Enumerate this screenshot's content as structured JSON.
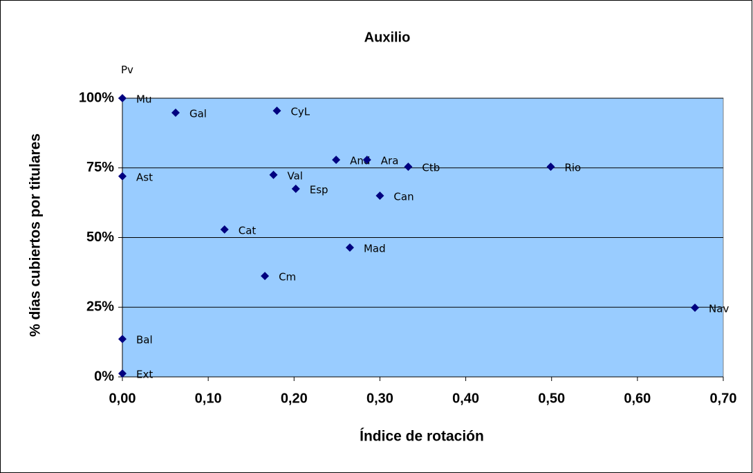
{
  "chart_data": {
    "type": "scatter",
    "title": "Auxilio",
    "xlabel": "Índice de rotación",
    "ylabel": "% días cubiertos por titulares",
    "series": [
      {
        "color": "#000080",
        "labels": [
          "Pv",
          "Mu",
          "Gal",
          "CyL",
          "And",
          "Ara",
          "Ctb",
          "Rio",
          "Ast",
          "Val",
          "Esp",
          "Can",
          "Cat",
          "Mad",
          "Cm",
          "Nav",
          "Bal",
          "Ext"
        ],
        "x": [
          0,
          0,
          0.062,
          0.18,
          0.249,
          0.285,
          0.333,
          0.499,
          0,
          0.176,
          0.202,
          0.3,
          0.119,
          0.265,
          0.166,
          0.667,
          0,
          0
        ],
        "values": [
          110,
          100,
          94.8,
          95.5,
          77.9,
          77.9,
          75.4,
          75.4,
          72,
          72.5,
          67.5,
          65,
          52.9,
          46.4,
          36.2,
          24.8,
          13.6,
          1.2
        ]
      }
    ],
    "xlim": [
      0,
      0.7
    ],
    "xticks": [
      {
        "value": 0,
        "label": "0,00"
      },
      {
        "value": 0.1,
        "label": "0,10"
      },
      {
        "value": 0.2,
        "label": "0,20"
      },
      {
        "value": 0.3,
        "label": "0,30"
      },
      {
        "value": 0.4,
        "label": "0,40"
      },
      {
        "value": 0.5,
        "label": "0,50"
      },
      {
        "value": 0.6,
        "label": "0,60"
      },
      {
        "value": 0.7,
        "label": "0,70"
      }
    ],
    "ylim": [
      0,
      100
    ],
    "yticks": [
      {
        "value": 0,
        "label": "0%"
      },
      {
        "value": 25,
        "label": "25%"
      },
      {
        "value": 50,
        "label": "50%"
      },
      {
        "value": 75,
        "label": "75%"
      },
      {
        "value": 100,
        "label": "100%"
      }
    ],
    "grid": true,
    "plot_color": "#99ccff"
  }
}
